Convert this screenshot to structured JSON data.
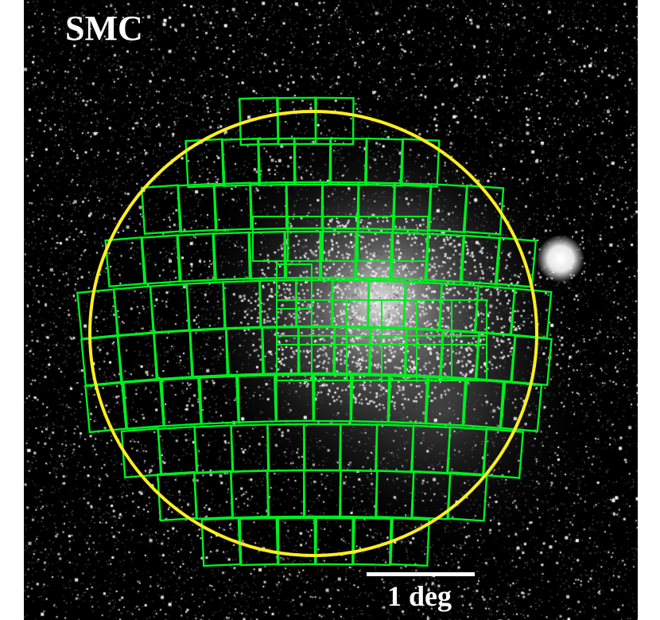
{
  "title": "SMC",
  "scale_bar": {
    "label": "1 deg"
  },
  "colors": {
    "background": "#000000",
    "tile_outline": "#00ee22",
    "boundary_circle": "#ffee22",
    "text": "#ffffff"
  }
}
